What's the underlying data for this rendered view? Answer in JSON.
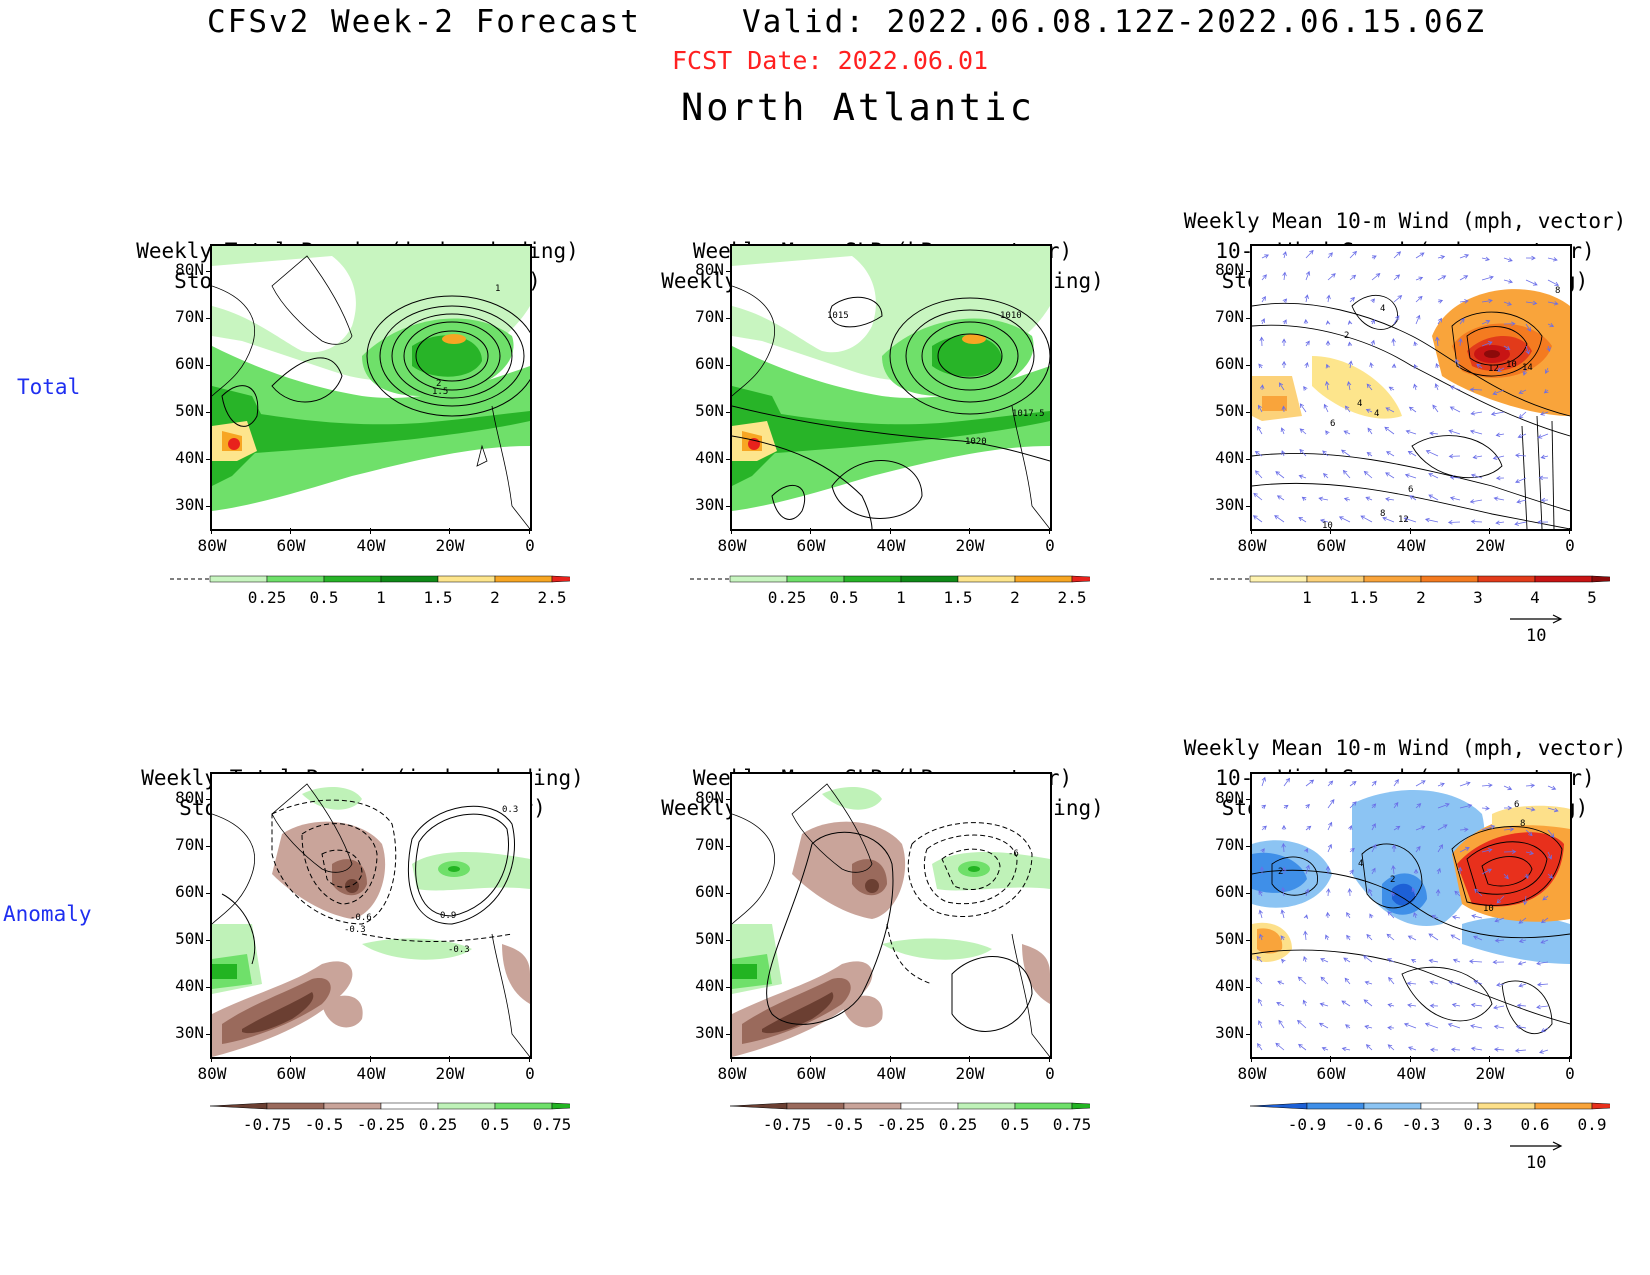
{
  "header": {
    "title_left": "CFSv2 Week-2 Forecast",
    "title_right": "Valid: 2022.06.08.12Z-2022.06.15.06Z",
    "fcst_date": "FCST Date: 2022.06.01",
    "region": "North Atlantic"
  },
  "rows": {
    "total": "Total",
    "anomaly": "Anomaly"
  },
  "axes": {
    "y_ticks": [
      "80N",
      "70N",
      "60N",
      "50N",
      "40N",
      "30N"
    ],
    "x_ticks": [
      "80W",
      "60W",
      "40W",
      "20W",
      "0"
    ]
  },
  "panels": {
    "p1": {
      "title_lines": [
        "Weekly Total Precip (inch, shading)",
        "Storm Track Density (contour)"
      ]
    },
    "p2": {
      "title_lines": [
        "Weekly Mean SLP (hPa, contour)",
        "Weekly Total Precip (inch, shading)"
      ]
    },
    "p3": {
      "title_lines": [
        "Weekly Mean 10-m Wind (mph, vector)",
        "10-m Wind Speed (mph, contour)",
        "Storm Track Density (shading)"
      ]
    },
    "p4": {
      "title_lines": [
        "Weekly Total Precip (inch, shading)",
        "Storm Track Density (contour)"
      ]
    },
    "p5": {
      "title_lines": [
        "Weekly Mean SLP (hPa, contour)",
        "Weekly Total Precip (inch, shading)"
      ]
    },
    "p6": {
      "title_lines": [
        "Weekly Mean 10-m Wind (mph, vector)",
        "10-m Wind Speed (mph, contour)",
        "Storm Track Density (shading)"
      ]
    }
  },
  "contour_labels": {
    "p1": [
      "1",
      "2",
      "1.5"
    ],
    "p2": [
      "1015",
      "1010",
      "1017.5",
      "1020"
    ],
    "p3": [
      "8",
      "4",
      "2",
      "12",
      "10",
      "14",
      "4",
      "4",
      "6",
      "6",
      "8",
      "12",
      "10"
    ],
    "p4": [
      "0.3",
      "-0.6",
      "-0.3",
      "0.9",
      "-0.3"
    ],
    "p5": [
      "-6"
    ],
    "p6": [
      "6",
      "8",
      "2",
      "4",
      "2",
      "10"
    ]
  },
  "colorbars": {
    "precip_total": [
      "0.25",
      "0.5",
      "1",
      "1.5",
      "2",
      "2.5"
    ],
    "storm_total": [
      "1",
      "1.5",
      "2",
      "3",
      "4",
      "5"
    ],
    "precip_anom": [
      "-0.75",
      "-0.5",
      "-0.25",
      "0.25",
      "0.5",
      "0.75"
    ],
    "storm_anom": [
      "-0.9",
      "-0.6",
      "-0.3",
      "0.3",
      "0.6",
      "0.9"
    ]
  },
  "colors": {
    "precip_total": [
      "#c8f5c0",
      "#6fe06a",
      "#28b428",
      "#0f8a18",
      "#fde58c",
      "#f7a623",
      "#e8221c"
    ],
    "storm_total": [
      "#fff3b0",
      "#fcd27a",
      "#f9a43b",
      "#f47b20",
      "#e23b1a",
      "#c81414",
      "#8c0a0a"
    ],
    "precip_anom": [
      "#6b3f32",
      "#9a6a5c",
      "#c9a49a",
      "#ffffff",
      "#bff2b8",
      "#6fe06a",
      "#22b422"
    ],
    "storm_anom": [
      "#1d60d6",
      "#3f8fe8",
      "#8cc4f3",
      "#ffffff",
      "#fde08a",
      "#f9a43b",
      "#e8301c"
    ]
  },
  "vector_reference": "10"
}
